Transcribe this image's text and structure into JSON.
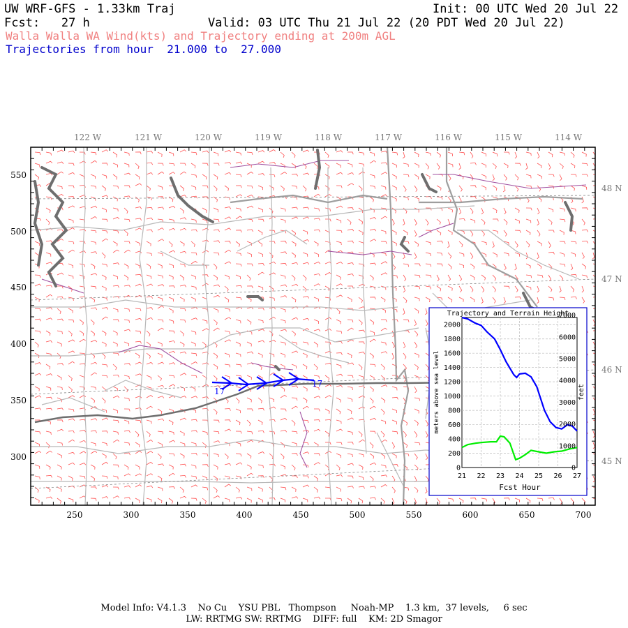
{
  "header": {
    "model_title": "UW WRF-GFS - 1.33km Traj",
    "init": "Init: 00 UTC Wed 20 Jul 22",
    "fcst": "Fcst:   27 h",
    "valid": "Valid: 03 UTC Thu 21 Jul 22 (20 PDT Wed 20 Jul 22)",
    "subtitle": "Walla Walla WA Wind(kts) and Trajectory ending at 200m AGL",
    "traj_range": "Trajectories from hour  21.000 to  27.000"
  },
  "colors": {
    "subtitle": "#f08080",
    "traj_range": "#0000cc",
    "wind_barb": "#ff5050",
    "trajectory": "#0000ff",
    "terrain_line": "#00ee00",
    "state_border": "#9e9e9e",
    "county_border": "#b8b8b8",
    "water": "#707070",
    "river": "#a050a0"
  },
  "map": {
    "top_lon_labels": [
      "122 W",
      "121 W",
      "120 W",
      "119 W",
      "118 W",
      "117 W",
      "116 W",
      "115 W",
      "114 W"
    ],
    "right_lat_labels": [
      "48 N",
      "47 N",
      "46 N",
      "45 N"
    ],
    "x_ticks": [
      "250",
      "300",
      "350",
      "400",
      "450",
      "500",
      "550",
      "600",
      "650",
      "700"
    ],
    "y_ticks": [
      "550",
      "500",
      "450",
      "400",
      "350",
      "300"
    ],
    "trajectory_labels": [
      "17",
      "17"
    ]
  },
  "inset": {
    "title": "Trajectory and Terrain Height",
    "xlabel": "Fcst Hour",
    "ylabel_left": "meters above sea level",
    "ylabel_right": "feet",
    "x_ticks": [
      "21",
      "22",
      "23",
      "24",
      "25",
      "26",
      "27"
    ],
    "y_ticks_left": [
      "0",
      "200",
      "400",
      "600",
      "800",
      "1000",
      "1200",
      "1400",
      "1600",
      "1800",
      "2000"
    ],
    "y_ticks_right": [
      "0",
      "1000",
      "2000",
      "3000",
      "4000",
      "5000",
      "6000",
      "7000"
    ]
  },
  "chart_data": {
    "type": "line",
    "title": "Trajectory and Terrain Height",
    "xlabel": "Fcst Hour",
    "ylabel": "meters above sea level",
    "xlim": [
      21,
      27
    ],
    "ylim": [
      0,
      2100
    ],
    "series": [
      {
        "color": "#0000ff",
        "x": [
          21.0,
          21.3,
          21.7,
          22.0,
          22.3,
          22.7,
          23.0,
          23.3,
          23.7,
          23.85,
          24.0,
          24.3,
          24.6,
          24.9,
          25.3,
          25.6,
          25.9,
          26.2,
          26.5,
          26.75,
          27.0
        ],
        "y": [
          2150,
          2080,
          2020,
          1990,
          1900,
          1800,
          1650,
          1480,
          1300,
          1260,
          1310,
          1320,
          1270,
          1130,
          800,
          640,
          560,
          540,
          600,
          580,
          510
        ]
      },
      {
        "color": "#00ee00",
        "x": [
          21.0,
          21.3,
          21.7,
          22.0,
          22.5,
          22.8,
          23.0,
          23.2,
          23.5,
          23.8,
          24.0,
          24.3,
          24.6,
          25.0,
          25.4,
          25.8,
          26.2,
          26.6,
          27.0
        ],
        "y": [
          280,
          320,
          340,
          350,
          360,
          360,
          440,
          430,
          340,
          110,
          130,
          180,
          240,
          220,
          200,
          220,
          230,
          260,
          280
        ]
      }
    ]
  },
  "footer": {
    "line1": "Model Info: V4.1.3    No Cu    YSU PBL   Thompson     Noah-MP    1.3 km,  37 levels,     6 sec",
    "line2": "LW: RRTMG SW: RRTMG    DIFF: full    KM: 2D Smagor"
  }
}
